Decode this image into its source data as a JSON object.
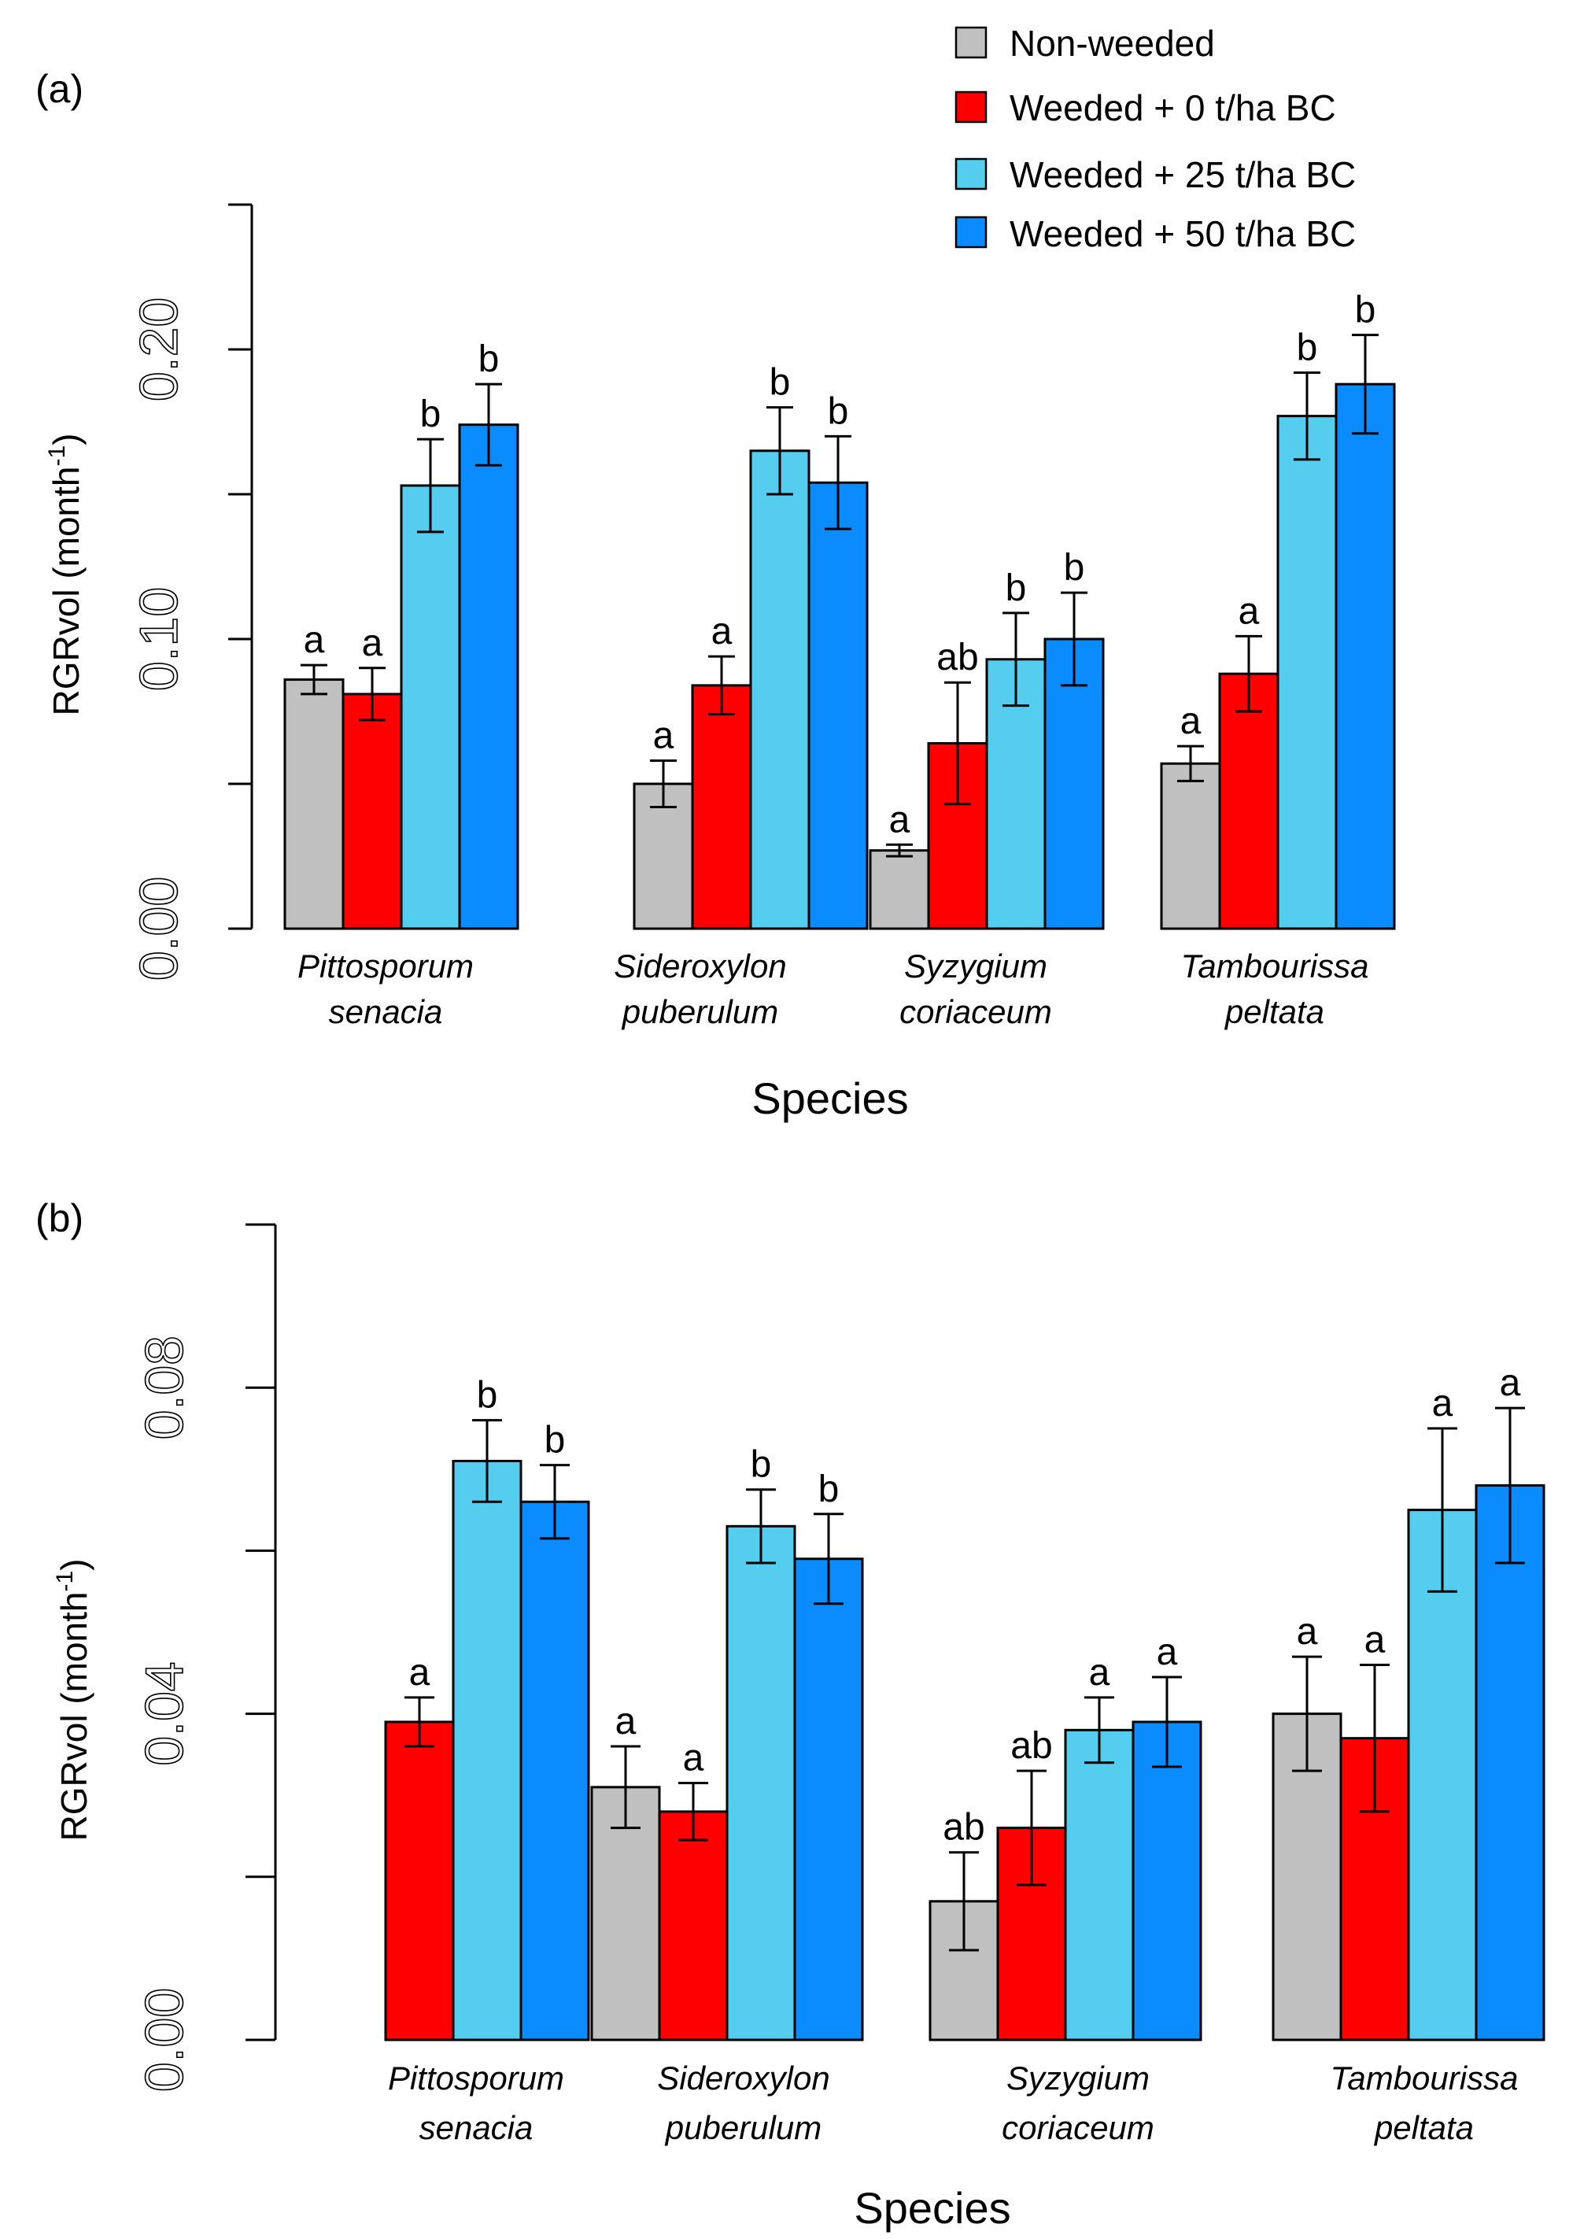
{
  "legend": {
    "entries": [
      "Non-weeded",
      "Weeded + 0 t/ha BC",
      "Weeded + 25 t/ha BC",
      "Weeded + 50 t/ha BC"
    ],
    "colors": [
      "#c0c0c0",
      "#ff0000",
      "#55cdee",
      "#0a8cff"
    ]
  },
  "chart_data": [
    {
      "type": "bar",
      "panel_label": "(a)",
      "xlabel": "Species",
      "ylabel": "RGRvol (month",
      "ylabel_sup": "-1",
      "ylabel_close": ")",
      "ylim": [
        0,
        0.25
      ],
      "yticks": [
        0.0,
        0.05,
        0.1,
        0.15,
        0.2,
        0.25
      ],
      "ytick_labels": [
        "0.00",
        "0.10",
        "0.20"
      ],
      "ytick_label_values": [
        0.0,
        0.1,
        0.2
      ],
      "categories": [
        [
          "Pittosporum",
          "senacia"
        ],
        [
          "Sideroxylon",
          "puberulum"
        ],
        [
          "Syzygium",
          "coriaceum"
        ],
        [
          "Tambourissa",
          "peltata"
        ]
      ],
      "series": [
        {
          "name": "Non-weeded",
          "values": [
            0.086,
            0.05,
            0.027,
            0.057
          ],
          "errors": [
            0.005,
            0.008,
            0.002,
            0.006
          ],
          "letters": [
            "a",
            "a",
            "a",
            "a"
          ]
        },
        {
          "name": "Weeded + 0 t/ha BC",
          "values": [
            0.081,
            0.084,
            0.064,
            0.088
          ],
          "errors": [
            0.009,
            0.01,
            0.021,
            0.013
          ],
          "letters": [
            "a",
            "a",
            "ab",
            "a"
          ]
        },
        {
          "name": "Weeded + 25 t/ha BC",
          "values": [
            0.153,
            0.165,
            0.093,
            0.177
          ],
          "errors": [
            0.016,
            0.015,
            0.016,
            0.015
          ],
          "letters": [
            "b",
            "b",
            "b",
            "b"
          ]
        },
        {
          "name": "Weeded + 50 t/ha BC",
          "values": [
            0.174,
            0.154,
            0.1,
            0.188
          ],
          "errors": [
            0.014,
            0.016,
            0.016,
            0.017
          ],
          "letters": [
            "b",
            "b",
            "b",
            "b"
          ]
        }
      ]
    },
    {
      "type": "bar",
      "panel_label": "(b)",
      "xlabel": "Species",
      "ylabel": "RGRvol (month",
      "ylabel_sup": "-1",
      "ylabel_close": ")",
      "ylim": [
        0,
        0.1
      ],
      "yticks": [
        0.0,
        0.02,
        0.04,
        0.06,
        0.08,
        0.1
      ],
      "ytick_labels": [
        "0.00",
        "0.04",
        "0.08"
      ],
      "ytick_label_values": [
        0.0,
        0.04,
        0.08
      ],
      "categories": [
        [
          "Pittosporum",
          "senacia"
        ],
        [
          "Sideroxylon",
          "puberulum"
        ],
        [
          "Syzygium",
          "coriaceum"
        ],
        [
          "Tambourissa",
          "peltata"
        ]
      ],
      "series": [
        {
          "name": "Non-weeded",
          "values": [
            null,
            0.031,
            0.017,
            0.04
          ],
          "errors": [
            null,
            0.005,
            0.006,
            0.007
          ],
          "letters": [
            null,
            "a",
            "ab",
            "a"
          ]
        },
        {
          "name": "Weeded + 0 t/ha BC",
          "values": [
            0.039,
            0.028,
            0.026,
            0.037
          ],
          "errors": [
            0.003,
            0.0035,
            0.007,
            0.009
          ],
          "letters": [
            "a",
            "a",
            "ab",
            "a"
          ]
        },
        {
          "name": "Weeded + 25 t/ha BC",
          "values": [
            0.071,
            0.063,
            0.038,
            0.065
          ],
          "errors": [
            0.005,
            0.0045,
            0.004,
            0.01
          ],
          "letters": [
            "b",
            "b",
            "a",
            "a"
          ]
        },
        {
          "name": "Weeded + 50 t/ha BC",
          "values": [
            0.066,
            0.059,
            0.039,
            0.068
          ],
          "errors": [
            0.0045,
            0.0055,
            0.0055,
            0.0095
          ],
          "letters": [
            "b",
            "b",
            "a",
            "a"
          ]
        }
      ]
    }
  ]
}
